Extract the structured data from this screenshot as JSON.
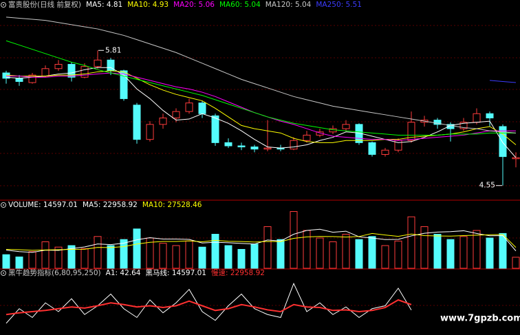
{
  "watermark": "www.7gpzb.com",
  "chart_data": [
    {
      "type": "candlestick",
      "title": "富贵股份(日线 前复权)",
      "up_color": "#ff3c3c",
      "down_color": "#54fcfc",
      "ylim": [
        4.42,
        6.19
      ],
      "open": [
        5.6,
        5.55,
        5.51,
        5.57,
        5.64,
        5.68,
        5.56,
        5.66,
        5.72,
        5.62,
        5.3,
        4.98,
        5.12,
        5.18,
        5.24,
        5.32,
        5.2,
        4.95,
        4.92,
        4.91,
        4.89,
        4.9,
        4.89,
        4.97,
        5.02,
        5.05,
        5.08,
        5.12,
        4.95,
        4.84,
        4.88,
        4.97,
        5.14,
        5.16,
        5.12,
        5.08,
        5.14,
        5.22,
        5.1,
        4.8
      ],
      "high": [
        5.62,
        5.58,
        5.6,
        5.67,
        5.72,
        5.7,
        5.69,
        5.81,
        5.74,
        5.63,
        5.32,
        5.15,
        5.22,
        5.27,
        5.36,
        5.34,
        5.22,
        4.99,
        4.95,
        4.93,
        5.16,
        4.93,
        5.0,
        5.06,
        5.08,
        5.11,
        5.16,
        5.13,
        4.96,
        4.9,
        4.99,
        5.24,
        5.2,
        5.18,
        5.14,
        5.18,
        5.27,
        5.24,
        5.12,
        4.86
      ],
      "low": [
        5.5,
        5.48,
        5.5,
        5.56,
        5.62,
        5.52,
        5.55,
        5.64,
        5.58,
        5.34,
        4.94,
        4.96,
        5.08,
        5.14,
        5.22,
        5.18,
        4.92,
        4.9,
        4.88,
        4.86,
        4.87,
        4.87,
        4.88,
        4.95,
        5.0,
        5.03,
        5.06,
        4.93,
        4.82,
        4.82,
        4.86,
        4.95,
        5.1,
        5.08,
        4.96,
        5.06,
        5.12,
        5.1,
        4.55,
        4.72
      ],
      "close": [
        5.55,
        5.52,
        5.58,
        5.64,
        5.68,
        5.56,
        5.66,
        5.72,
        5.62,
        5.36,
        4.98,
        5.12,
        5.18,
        5.24,
        5.32,
        5.22,
        4.95,
        4.92,
        4.91,
        4.89,
        4.9,
        4.89,
        4.97,
        5.02,
        5.05,
        5.08,
        5.12,
        4.95,
        4.84,
        4.88,
        4.97,
        5.14,
        5.16,
        5.12,
        5.08,
        5.14,
        5.22,
        5.18,
        4.82,
        4.81
      ],
      "series": [
        {
          "name": "MA5: 4.81",
          "color": "#ffffff",
          "values": [
            5.56,
            5.55,
            5.56,
            5.57,
            5.59,
            5.6,
            5.63,
            5.65,
            5.65,
            5.58,
            5.45,
            5.36,
            5.25,
            5.16,
            5.17,
            5.22,
            5.18,
            5.13,
            5.06,
            4.98,
            4.91,
            4.9,
            4.91,
            4.93,
            4.97,
            5.0,
            5.05,
            5.04,
            5.01,
            4.98,
            4.95,
            4.96,
            5.0,
            5.05,
            5.11,
            5.13,
            5.14,
            5.15,
            4.95,
            4.81
          ]
        },
        {
          "name": "MA10: 4.93",
          "color": "#ffff00",
          "values": [
            5.58,
            5.57,
            5.57,
            5.57,
            5.58,
            5.58,
            5.59,
            5.61,
            5.62,
            5.61,
            5.55,
            5.49,
            5.44,
            5.4,
            5.37,
            5.34,
            5.27,
            5.19,
            5.11,
            5.08,
            5.06,
            5.04,
            4.99,
            4.96,
            4.95,
            4.95,
            4.97,
            4.97,
            4.97,
            4.98,
            4.98,
            5.0,
            5.01,
            5.02,
            5.03,
            5.05,
            5.08,
            5.1,
            5.03,
            4.93
          ]
        },
        {
          "name": "MA20: 5.06",
          "color": "#ff00ff",
          "values": [
            5.57,
            5.57,
            5.56,
            5.56,
            5.57,
            5.57,
            5.58,
            5.59,
            5.6,
            5.59,
            5.56,
            5.53,
            5.5,
            5.47,
            5.45,
            5.42,
            5.38,
            5.33,
            5.28,
            5.23,
            5.19,
            5.15,
            5.12,
            5.08,
            5.04,
            5.01,
            5.0,
            4.99,
            4.98,
            4.98,
            4.97,
            4.98,
            4.99,
            5.0,
            5.01,
            5.02,
            5.04,
            5.06,
            5.06,
            5.06
          ]
        },
        {
          "name": "MA60: 5.04",
          "color": "#00ff00",
          "values": [
            5.9,
            5.86,
            5.82,
            5.78,
            5.74,
            5.7,
            5.67,
            5.63,
            5.6,
            5.57,
            5.54,
            5.51,
            5.48,
            5.45,
            5.42,
            5.39,
            5.35,
            5.31,
            5.27,
            5.23,
            5.19,
            5.16,
            5.13,
            5.11,
            5.09,
            5.07,
            5.06,
            5.05,
            5.04,
            5.03,
            5.02,
            5.02,
            5.02,
            5.02,
            5.03,
            5.03,
            5.03,
            5.04,
            5.04,
            5.04
          ]
        },
        {
          "name": "MA120: 5.04",
          "color": "#c8c8c8",
          "values": [
            6.12,
            6.11,
            6.1,
            6.09,
            6.07,
            6.05,
            6.03,
            6.01,
            5.98,
            5.95,
            5.91,
            5.87,
            5.83,
            5.79,
            5.74,
            5.69,
            5.64,
            5.59,
            5.54,
            5.5,
            5.46,
            5.42,
            5.38,
            5.35,
            5.32,
            5.29,
            5.27,
            5.25,
            5.23,
            5.21,
            5.19,
            5.17,
            5.15,
            5.13,
            5.11,
            5.09,
            5.08,
            5.06,
            5.05,
            5.04
          ]
        },
        {
          "name": "MA250: 5.51",
          "color": "#3c3cff",
          "values": [
            null,
            null,
            null,
            null,
            null,
            null,
            null,
            null,
            null,
            null,
            null,
            null,
            null,
            null,
            null,
            null,
            null,
            null,
            null,
            null,
            null,
            null,
            null,
            null,
            null,
            null,
            null,
            null,
            null,
            null,
            null,
            null,
            null,
            null,
            null,
            null,
            null,
            5.53,
            5.52,
            5.51
          ]
        }
      ],
      "annotations": [
        {
          "text": "5.81",
          "value": 5.81
        },
        {
          "text": "4.55",
          "value": 4.55
        }
      ]
    },
    {
      "type": "volume",
      "ylim": [
        0,
        80000
      ],
      "series": [
        {
          "name": "VOLUME: 14597.01",
          "style": "bar",
          "values": [
            18000,
            15000,
            22000,
            35000,
            28000,
            30000,
            26000,
            42000,
            30000,
            38000,
            52000,
            40000,
            33000,
            30000,
            36000,
            28000,
            45000,
            30000,
            25000,
            32000,
            55000,
            38000,
            75000,
            50000,
            40000,
            35000,
            45000,
            38000,
            42000,
            30000,
            36000,
            68000,
            55000,
            45000,
            38000,
            42000,
            50000,
            40000,
            46000,
            14597.01
          ]
        },
        {
          "name": "MA5: 22958.92",
          "style": "line",
          "color": "#ffffff",
          "values": [
            24000,
            22000,
            21000,
            24000,
            23600,
            26000,
            28200,
            32200,
            31200,
            33200,
            37600,
            40400,
            38600,
            38600,
            38200,
            33400,
            34400,
            33800,
            32800,
            32000,
            37400,
            36000,
            45000,
            50000,
            51600,
            47600,
            49000,
            41600,
            40000,
            38000,
            38200,
            42800,
            46200,
            47800,
            48400,
            49600,
            46000,
            43000,
            43200,
            22958.92
          ]
        },
        {
          "name": "MA10: 27528.46",
          "style": "line",
          "color": "#ffff00",
          "values": [
            25000,
            24500,
            23800,
            24200,
            24500,
            25000,
            25100,
            27600,
            27400,
            28600,
            32000,
            34300,
            35400,
            35400,
            36200,
            35000,
            36900,
            35700,
            35300,
            34700,
            35400,
            35200,
            39500,
            41500,
            42000,
            41900,
            41200,
            42000,
            46000,
            44000,
            42200,
            45200,
            43200,
            42700,
            42500,
            43200,
            43700,
            44300,
            44700,
            27528.46
          ]
        }
      ]
    },
    {
      "type": "line",
      "title": "黑牛趋势指标(6,80,95,250)",
      "ylim": [
        0,
        100
      ],
      "legend_texts": [
        {
          "text": "A1: 42.64",
          "color": "#ffffff"
        },
        {
          "text": "黑马线: 14597.01",
          "color": "#ffffff"
        },
        {
          "text": "慢速: 22958.92",
          "color": "#ff3030"
        }
      ],
      "series": [
        {
          "color": "#ffffff",
          "width": 1,
          "values": [
            20,
            45,
            30,
            55,
            40,
            62,
            35,
            50,
            70,
            45,
            30,
            60,
            38,
            55,
            78,
            40,
            25,
            50,
            70,
            45,
            35,
            30,
            88,
            40,
            55,
            35,
            48,
            30,
            45,
            50,
            80,
            42.64,
            null,
            null,
            null,
            null,
            null,
            null,
            null,
            null
          ]
        },
        {
          "color": "#ff3030",
          "width": 2,
          "values": [
            35,
            38,
            40,
            42,
            45,
            48,
            46,
            50,
            55,
            52,
            48,
            50,
            47,
            50,
            58,
            50,
            42,
            45,
            52,
            48,
            43,
            40,
            52,
            48,
            47,
            42,
            43,
            40,
            42,
            47,
            60,
            52,
            null,
            null,
            null,
            null,
            null,
            null,
            null,
            null
          ]
        }
      ]
    }
  ]
}
